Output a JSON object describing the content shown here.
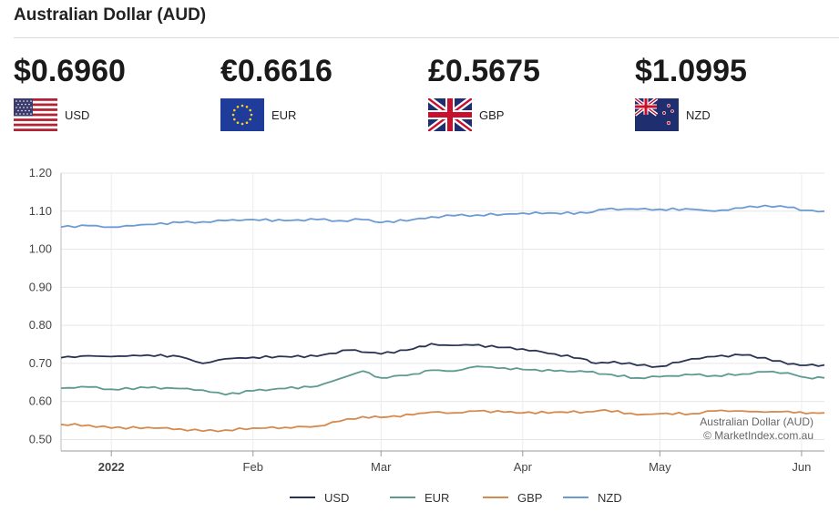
{
  "header": {
    "title": "Australian Dollar (AUD)"
  },
  "rates": [
    {
      "price": "$0.6960",
      "code": "USD",
      "flag_icon": "us-flag-icon"
    },
    {
      "price": "€0.6616",
      "code": "EUR",
      "flag_icon": "eu-flag-icon"
    },
    {
      "price": "£0.5675",
      "code": "GBP",
      "flag_icon": "uk-flag-icon"
    },
    {
      "price": "$1.0995",
      "code": "NZD",
      "flag_icon": "nz-flag-icon"
    }
  ],
  "chart_data": {
    "type": "line",
    "y_ticks": [
      "0.50",
      "0.60",
      "0.70",
      "0.80",
      "0.90",
      "1.00",
      "1.10",
      "1.20"
    ],
    "ylim": [
      0.47,
      1.2
    ],
    "x_ticks": [
      "2022",
      "Feb",
      "Mar",
      "Apr",
      "May",
      "Jun"
    ],
    "x_tick_days": [
      0,
      31,
      59,
      90,
      120,
      151
    ],
    "x_range_days": [
      -11,
      156
    ],
    "credit": [
      "Australian Dollar (AUD)",
      "© MarketIndex.com.au"
    ],
    "series": [
      {
        "name": "USD",
        "color": "#2b3354",
        "x": [
          -11,
          -5,
          0,
          8,
          15,
          20,
          25,
          31,
          38,
          45,
          52,
          59,
          66,
          70,
          73,
          79,
          86,
          90,
          97,
          104,
          106,
          110,
          115,
          120,
          127,
          132,
          138,
          143,
          148,
          152,
          156
        ],
        "y": [
          0.715,
          0.72,
          0.718,
          0.722,
          0.718,
          0.7,
          0.712,
          0.716,
          0.718,
          0.719,
          0.735,
          0.725,
          0.738,
          0.752,
          0.748,
          0.748,
          0.742,
          0.738,
          0.725,
          0.71,
          0.7,
          0.705,
          0.695,
          0.692,
          0.712,
          0.718,
          0.722,
          0.715,
          0.698,
          0.695,
          0.696
        ]
      },
      {
        "name": "EUR",
        "color": "#5e9a8e",
        "x": [
          -11,
          -5,
          0,
          8,
          15,
          20,
          25,
          31,
          38,
          45,
          50,
          55,
          59,
          66,
          70,
          75,
          80,
          86,
          90,
          97,
          104,
          108,
          115,
          120,
          127,
          132,
          138,
          143,
          148,
          152,
          156
        ],
        "y": [
          0.635,
          0.638,
          0.632,
          0.636,
          0.634,
          0.63,
          0.618,
          0.628,
          0.634,
          0.64,
          0.66,
          0.68,
          0.662,
          0.672,
          0.682,
          0.68,
          0.692,
          0.688,
          0.684,
          0.68,
          0.678,
          0.672,
          0.662,
          0.665,
          0.67,
          0.668,
          0.672,
          0.678,
          0.675,
          0.663,
          0.662
        ]
      },
      {
        "name": "GBP",
        "color": "#d58a4f",
        "x": [
          -11,
          -5,
          0,
          8,
          15,
          20,
          25,
          31,
          38,
          45,
          50,
          55,
          59,
          66,
          70,
          75,
          80,
          86,
          90,
          97,
          104,
          108,
          115,
          120,
          127,
          132,
          138,
          143,
          148,
          152,
          156
        ],
        "y": [
          0.54,
          0.538,
          0.53,
          0.532,
          0.528,
          0.522,
          0.525,
          0.53,
          0.532,
          0.535,
          0.548,
          0.56,
          0.558,
          0.565,
          0.572,
          0.57,
          0.575,
          0.572,
          0.57,
          0.572,
          0.573,
          0.578,
          0.565,
          0.568,
          0.568,
          0.575,
          0.575,
          0.572,
          0.574,
          0.568,
          0.57
        ]
      },
      {
        "name": "NZD",
        "color": "#6c9bd4",
        "x": [
          -11,
          -5,
          0,
          8,
          15,
          20,
          25,
          31,
          38,
          45,
          50,
          55,
          59,
          66,
          70,
          75,
          80,
          86,
          90,
          97,
          104,
          108,
          115,
          120,
          127,
          132,
          138,
          143,
          148,
          152,
          156
        ],
        "y": [
          1.058,
          1.062,
          1.058,
          1.065,
          1.07,
          1.072,
          1.075,
          1.078,
          1.075,
          1.078,
          1.075,
          1.078,
          1.07,
          1.078,
          1.085,
          1.088,
          1.09,
          1.092,
          1.095,
          1.095,
          1.095,
          1.105,
          1.105,
          1.105,
          1.105,
          1.1,
          1.108,
          1.115,
          1.11,
          1.102,
          1.1
        ]
      }
    ]
  }
}
